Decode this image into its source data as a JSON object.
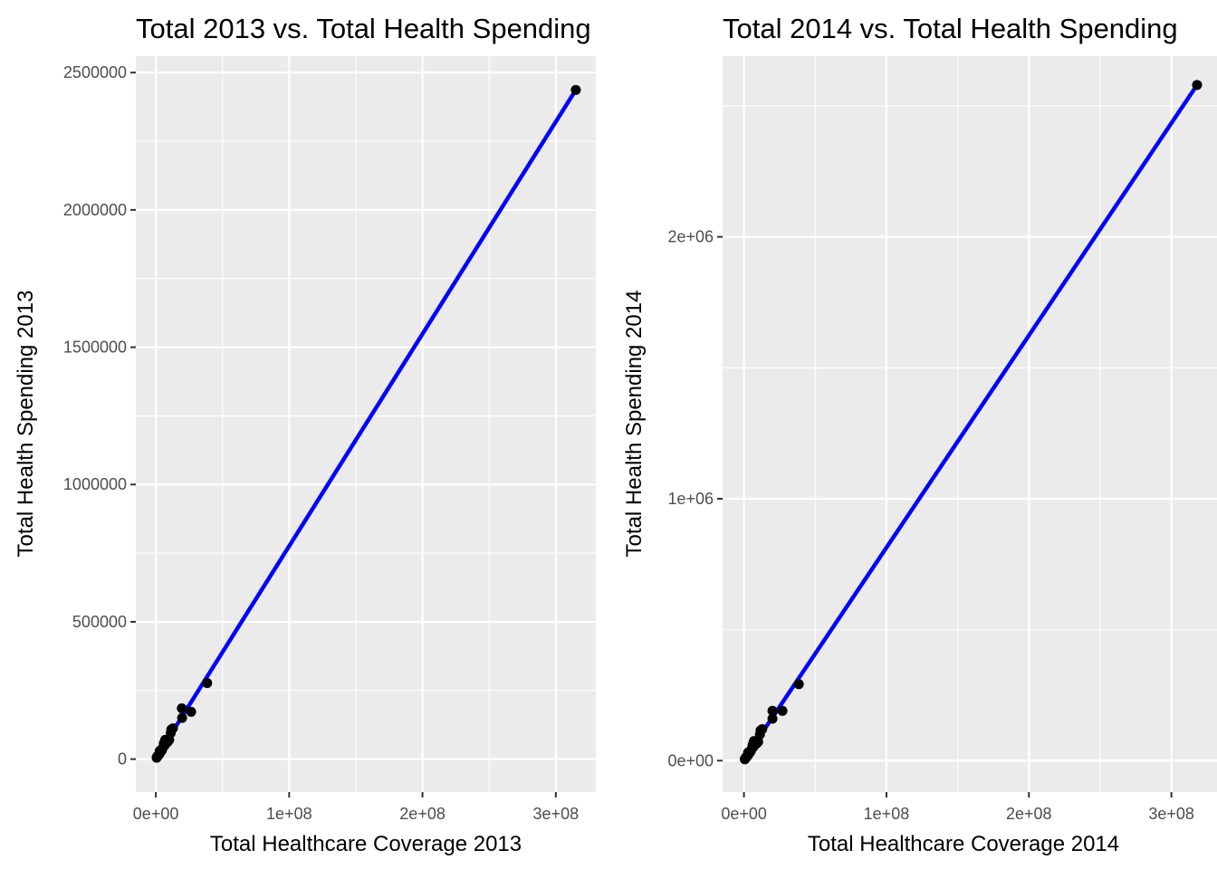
{
  "chart_data": [
    {
      "type": "scatter",
      "title": "Total 2013 vs. Total Health Spending",
      "xlabel": "Total Healthcare Coverage 2013",
      "ylabel": "Total Health Spending 2013",
      "xlim": [
        -15000000,
        330000000
      ],
      "ylim": [
        -120000,
        2560000
      ],
      "x_ticks": [
        0,
        100000000,
        200000000,
        300000000
      ],
      "x_tick_labels": [
        "0e+00",
        "1e+08",
        "2e+08",
        "3e+08"
      ],
      "y_ticks": [
        0,
        500000,
        1000000,
        1500000,
        2000000,
        2500000
      ],
      "y_tick_labels": [
        "0",
        "500000",
        "1000000",
        "1500000",
        "2000000",
        "2500000"
      ],
      "grid": true,
      "points": [
        {
          "x": 315000000,
          "y": 2437000
        },
        {
          "x": 38500000,
          "y": 277000
        },
        {
          "x": 26500000,
          "y": 172000
        },
        {
          "x": 19500000,
          "y": 185000
        },
        {
          "x": 19700000,
          "y": 150000
        },
        {
          "x": 12800000,
          "y": 112000
        },
        {
          "x": 11600000,
          "y": 108000
        },
        {
          "x": 11200000,
          "y": 95000
        },
        {
          "x": 10000000,
          "y": 70000
        },
        {
          "x": 8800000,
          "y": 62000
        },
        {
          "x": 7000000,
          "y": 70000
        },
        {
          "x": 6500000,
          "y": 49000
        },
        {
          "x": 6000000,
          "y": 57000
        },
        {
          "x": 5500000,
          "y": 44000
        },
        {
          "x": 4800000,
          "y": 36000
        },
        {
          "x": 4500000,
          "y": 32000
        },
        {
          "x": 3900000,
          "y": 28000
        },
        {
          "x": 3000000,
          "y": 22000
        },
        {
          "x": 2900000,
          "y": 30000
        },
        {
          "x": 2700000,
          "y": 18000
        },
        {
          "x": 2000000,
          "y": 14000
        },
        {
          "x": 1300000,
          "y": 12000
        },
        {
          "x": 1000000,
          "y": 8000
        },
        {
          "x": 700000,
          "y": 7000
        },
        {
          "x": 600000,
          "y": 5000
        }
      ],
      "fit_line": {
        "color": "#0000ff",
        "from": {
          "x": 0,
          "y": 3000
        },
        "to": {
          "x": 315000000,
          "y": 2437000
        }
      }
    },
    {
      "type": "scatter",
      "title": "Total 2014 vs. Total Health Spending",
      "xlabel": "Total Healthcare Coverage 2014",
      "ylabel": "Total Health Spending 2014",
      "xlim": [
        -15000000,
        332000000
      ],
      "ylim": [
        -120000,
        2690000
      ],
      "x_ticks": [
        0,
        100000000,
        200000000,
        300000000
      ],
      "x_tick_labels": [
        "0e+00",
        "1e+08",
        "2e+08",
        "3e+08"
      ],
      "y_ticks": [
        0,
        1000000,
        2000000
      ],
      "y_tick_labels": [
        "0e+00",
        "1e+06",
        "2e+06"
      ],
      "grid": true,
      "points": [
        {
          "x": 318000000,
          "y": 2580000
        },
        {
          "x": 38500000,
          "y": 292000
        },
        {
          "x": 27000000,
          "y": 190000
        },
        {
          "x": 20000000,
          "y": 190000
        },
        {
          "x": 20000000,
          "y": 160000
        },
        {
          "x": 12800000,
          "y": 120000
        },
        {
          "x": 11600000,
          "y": 115000
        },
        {
          "x": 11200000,
          "y": 100000
        },
        {
          "x": 10000000,
          "y": 72000
        },
        {
          "x": 8800000,
          "y": 65000
        },
        {
          "x": 7000000,
          "y": 75000
        },
        {
          "x": 6600000,
          "y": 52000
        },
        {
          "x": 6100000,
          "y": 60000
        },
        {
          "x": 5600000,
          "y": 47000
        },
        {
          "x": 4900000,
          "y": 38000
        },
        {
          "x": 4500000,
          "y": 34000
        },
        {
          "x": 3900000,
          "y": 29000
        },
        {
          "x": 3000000,
          "y": 23000
        },
        {
          "x": 2900000,
          "y": 31000
        },
        {
          "x": 2700000,
          "y": 19000
        },
        {
          "x": 2000000,
          "y": 15000
        },
        {
          "x": 1300000,
          "y": 12000
        },
        {
          "x": 1000000,
          "y": 8000
        },
        {
          "x": 700000,
          "y": 7000
        },
        {
          "x": 600000,
          "y": 5000
        }
      ],
      "fit_line": {
        "color": "#0000ff",
        "from": {
          "x": 0,
          "y": 3000
        },
        "to": {
          "x": 318000000,
          "y": 2580000
        }
      }
    }
  ]
}
